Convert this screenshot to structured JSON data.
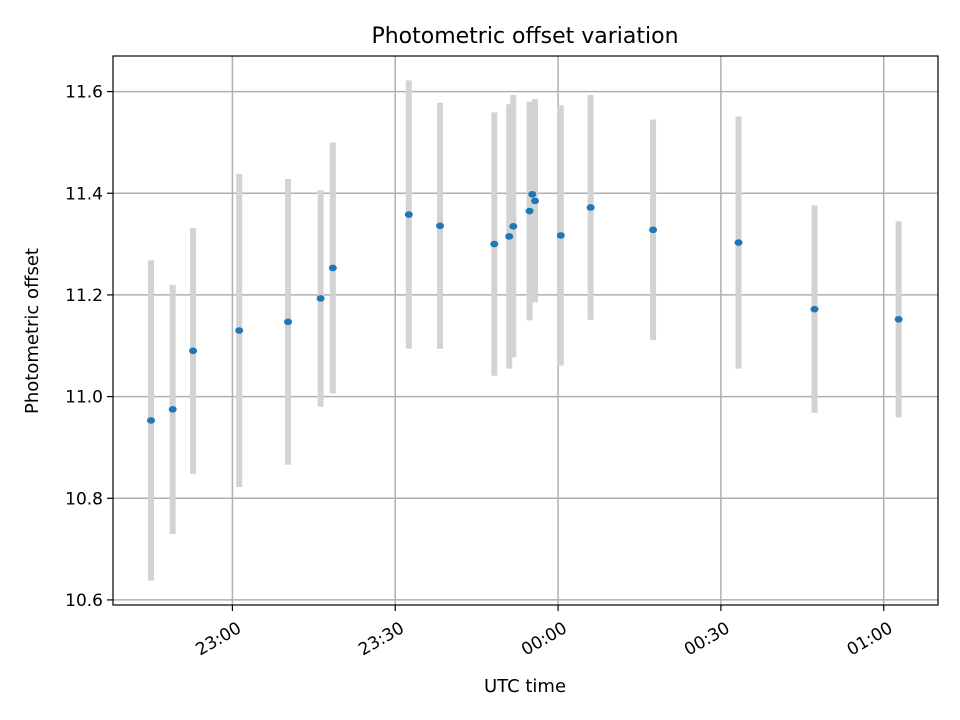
{
  "chart_data": {
    "type": "scatter",
    "title": "Photometric offset variation",
    "xlabel": "UTC time",
    "ylabel": "Photometric offset",
    "x_axis": "time (UTC), HH:MM",
    "xlim": [
      "22:38",
      "01:10"
    ],
    "ylim": [
      10.59,
      11.67
    ],
    "grid": true,
    "point_color": "#1f77b4",
    "errorbar_color": "#d3d3d3",
    "x_ticks": [
      "23:00",
      "23:30",
      "00:00",
      "00:30",
      "01:00"
    ],
    "y_ticks": [
      10.6,
      10.8,
      11.0,
      11.2,
      11.4,
      11.6
    ],
    "y_tick_labels": [
      "10.6",
      "10.8",
      "11.0",
      "11.2",
      "11.4",
      "11.6"
    ],
    "points": [
      {
        "time": "22:45:00",
        "y": 10.953,
        "err": 0.315
      },
      {
        "time": "22:49:00",
        "y": 10.975,
        "err": 0.245
      },
      {
        "time": "22:52:45",
        "y": 11.09,
        "err": 0.242
      },
      {
        "time": "23:01:15",
        "y": 11.13,
        "err": 0.308
      },
      {
        "time": "23:10:15",
        "y": 11.147,
        "err": 0.281
      },
      {
        "time": "23:16:15",
        "y": 11.193,
        "err": 0.213
      },
      {
        "time": "23:18:30",
        "y": 11.253,
        "err": 0.247
      },
      {
        "time": "23:32:30",
        "y": 11.358,
        "err": 0.264
      },
      {
        "time": "23:38:15",
        "y": 11.336,
        "err": 0.242
      },
      {
        "time": "23:48:15",
        "y": 11.3,
        "err": 0.259
      },
      {
        "time": "23:51:00",
        "y": 11.315,
        "err": 0.26
      },
      {
        "time": "23:51:45",
        "y": 11.335,
        "err": 0.258
      },
      {
        "time": "23:54:45",
        "y": 11.365,
        "err": 0.215
      },
      {
        "time": "23:55:15",
        "y": 11.398,
        "err": 0.179
      },
      {
        "time": "23:55:45",
        "y": 11.385,
        "err": 0.2
      },
      {
        "time": "00:00:30",
        "y": 11.317,
        "err": 0.256
      },
      {
        "time": "00:06:00",
        "y": 11.372,
        "err": 0.221
      },
      {
        "time": "00:17:30",
        "y": 11.328,
        "err": 0.217
      },
      {
        "time": "00:33:15",
        "y": 11.303,
        "err": 0.248
      },
      {
        "time": "00:47:15",
        "y": 11.172,
        "err": 0.204
      },
      {
        "time": "01:02:45",
        "y": 11.152,
        "err": 0.193
      }
    ]
  }
}
